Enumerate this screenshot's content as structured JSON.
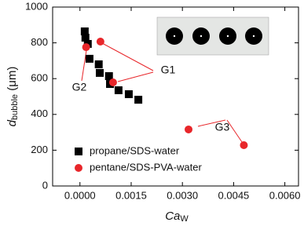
{
  "chart_data": {
    "type": "scatter",
    "x_label": {
      "symbol": "Ca",
      "subscript": "W"
    },
    "y_label": {
      "symbol": "d",
      "subscript": "bubble",
      "unit": "(μm)"
    },
    "xlim": [
      -0.0008,
      0.0064
    ],
    "ylim": [
      0,
      1000
    ],
    "xticks": [
      {
        "value": 0,
        "label": "0.0000"
      },
      0.0015,
      {
        "value": 0.003,
        "label": "0.0030"
      },
      0.0045,
      {
        "value": 0.006,
        "label": "0.0060"
      }
    ],
    "yticks": [
      0,
      200,
      400,
      600,
      800,
      1000
    ],
    "series": [
      {
        "name": "propane/SDS-water",
        "color": "#000000",
        "marker": "square",
        "x": [
          0.00014,
          0.00016,
          0.00023,
          0.00028,
          0.00055,
          0.00058,
          0.00085,
          0.00088,
          0.00113,
          0.00143,
          0.00171
        ],
        "values": [
          864,
          829,
          794,
          711,
          680,
          632,
          614,
          570,
          535,
          513,
          482
        ]
      },
      {
        "name": "pentane/SDS-PVA-water",
        "color": "#e8262a",
        "marker": "circle",
        "x": [
          0.00018,
          0.0006,
          0.00097,
          0.00318,
          0.0048
        ],
        "values": [
          776,
          807,
          579,
          316,
          228
        ]
      }
    ],
    "legend": "lower left",
    "annotations": [
      "G1",
      "G2",
      "G3"
    ]
  }
}
